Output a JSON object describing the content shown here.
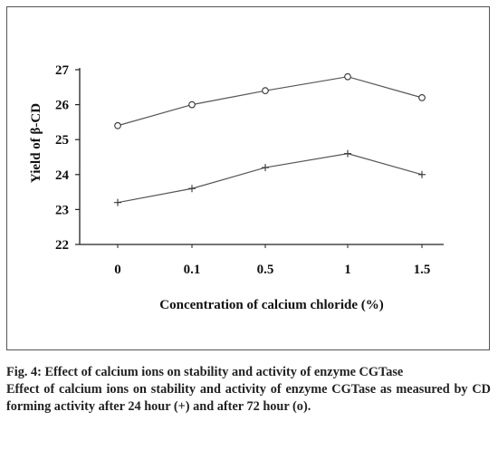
{
  "chart_data": {
    "type": "line",
    "categories": [
      "0",
      "0.1",
      "0.5",
      "1",
      "1.5"
    ],
    "series": [
      {
        "name": "72 hour (o)",
        "marker": "circle",
        "values": [
          25.4,
          26.0,
          26.4,
          26.8,
          26.2
        ]
      },
      {
        "name": "24 hour (+)",
        "marker": "plus",
        "values": [
          23.2,
          23.6,
          24.2,
          24.6,
          24.0
        ]
      }
    ],
    "title": "",
    "xlabel": "Concentration of calcium chloride (%)",
    "ylabel": "Yield of β-CD",
    "ylim": [
      22,
      27
    ],
    "yticks": [
      22,
      23,
      24,
      25,
      26,
      27
    ],
    "grid": false,
    "colors": {
      "line": "#555555",
      "axis": "#222222"
    }
  },
  "caption": {
    "title": "Fig. 4: Effect of calcium ions on stability and activity of enzyme CGTase",
    "body": "Effect of calcium ions on stability and activity of enzyme CGTase as measured by CD forming activity after 24 hour (+) and after 72 hour (o)."
  }
}
